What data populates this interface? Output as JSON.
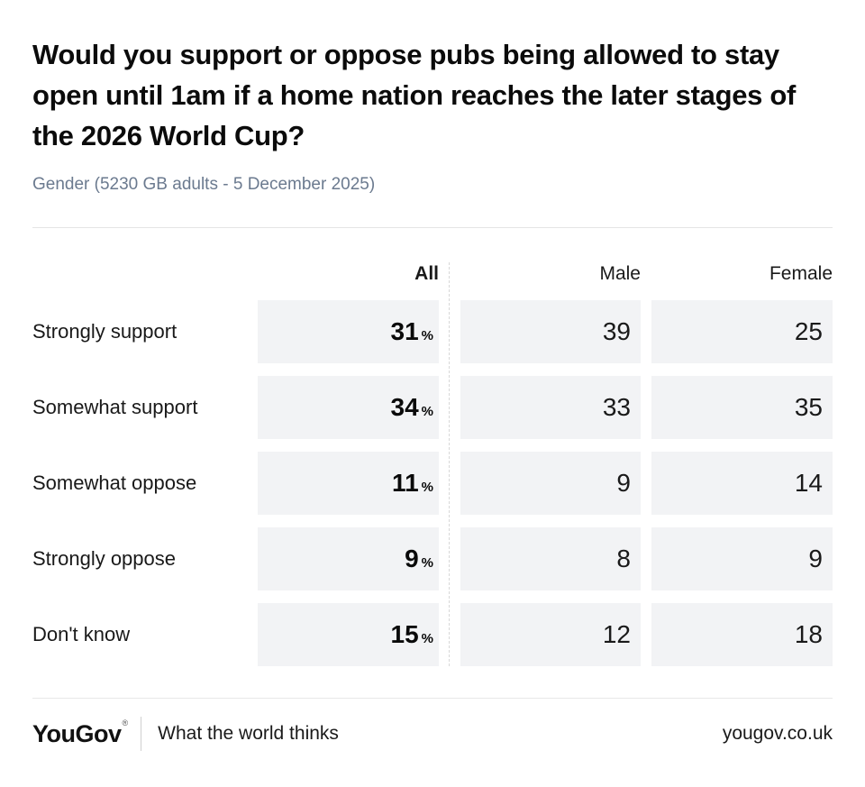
{
  "title_lines": [
    "Would you support or oppose pubs being allowed to stay",
    "open until 1am if a home nation reaches the later stages of",
    "the 2026 World Cup?"
  ],
  "subtitle": "Gender (5230 GB adults - 5 December 2025)",
  "table": {
    "columns": [
      "All",
      "Male",
      "Female"
    ],
    "percent_symbol": "%",
    "rows": [
      {
        "label": "Strongly support",
        "all": 31,
        "male": 39,
        "female": 25
      },
      {
        "label": "Somewhat support",
        "all": 34,
        "male": 33,
        "female": 35
      },
      {
        "label": "Somewhat oppose",
        "all": 11,
        "male": 9,
        "female": 14
      },
      {
        "label": "Strongly oppose",
        "all": 9,
        "male": 8,
        "female": 9
      },
      {
        "label": "Don't know",
        "all": 15,
        "male": 12,
        "female": 18
      }
    ]
  },
  "footer": {
    "logo": "YouGov",
    "registered_mark": "®",
    "tagline": "What the world thinks",
    "website": "yougov.co.uk"
  },
  "colors": {
    "box_bg": "#f2f3f5",
    "subtitle_text": "#6b7a8f",
    "title_text": "#0b0b0b",
    "body_text": "#191919",
    "rule": "#e5e5e5",
    "dashed_separator": "#d8d8d8"
  },
  "chart_data": {
    "type": "table",
    "title": "Would you support or oppose pubs being allowed to stay open until 1am if a home nation reaches the later stages of the 2026 World Cup?",
    "subtitle": "Gender (5230 GB adults - 5 December 2025)",
    "categories": [
      "Strongly support",
      "Somewhat support",
      "Somewhat oppose",
      "Strongly oppose",
      "Don't know"
    ],
    "series": [
      {
        "name": "All",
        "unit": "%",
        "values": [
          31,
          34,
          11,
          9,
          15
        ]
      },
      {
        "name": "Male",
        "values": [
          39,
          33,
          9,
          8,
          12
        ]
      },
      {
        "name": "Female",
        "values": [
          25,
          35,
          14,
          9,
          18
        ]
      }
    ],
    "layout": {
      "value_boxes": true,
      "all_column_separated_by_dashed_line": true
    }
  }
}
